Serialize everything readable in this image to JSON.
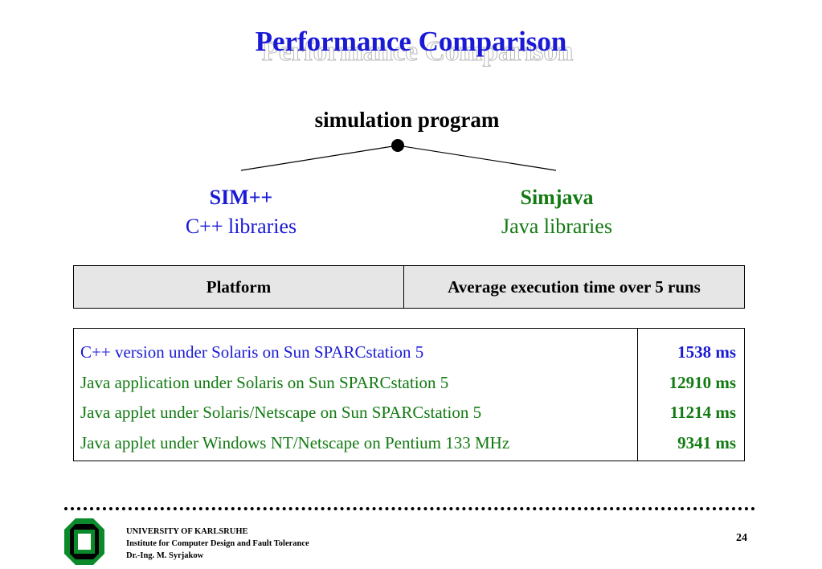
{
  "slide": {
    "title": "Performance Comparison",
    "subtitle": "simulation program"
  },
  "branches": {
    "left": {
      "name": "SIM++",
      "description": "C++ libraries"
    },
    "right": {
      "name": "Simjava",
      "description": "Java libraries"
    }
  },
  "table": {
    "headers": [
      "Platform",
      "Average execution time over 5 runs"
    ],
    "rows": [
      {
        "platform": "C++ version under Solaris on Sun SPARCstation 5",
        "time": "1538 ms"
      },
      {
        "platform": "Java application under Solaris on Sun SPARCstation 5",
        "time": "12910 ms"
      },
      {
        "platform": "Java applet under Solaris/Netscape on Sun SPARCstation 5",
        "time": "11214 ms"
      },
      {
        "platform": "Java applet under Windows NT/Netscape on Pentium 133 MHz",
        "time": "9341 ms"
      }
    ]
  },
  "footer": {
    "university": "UNIVERSITY OF KARLSRUHE",
    "institute": "Institute for Computer Design and Fault Tolerance",
    "author": "Dr.-Ing. M. Syrjakow",
    "page_number": "24"
  },
  "colors": {
    "title": "#1a1ad6",
    "sim_branch": "#1a1ad6",
    "java_branch": "#127a12",
    "header_bg": "#e6e6e6",
    "logo_green": "#0a8a2a"
  },
  "icons": {
    "logo": "university-logo-icon"
  }
}
